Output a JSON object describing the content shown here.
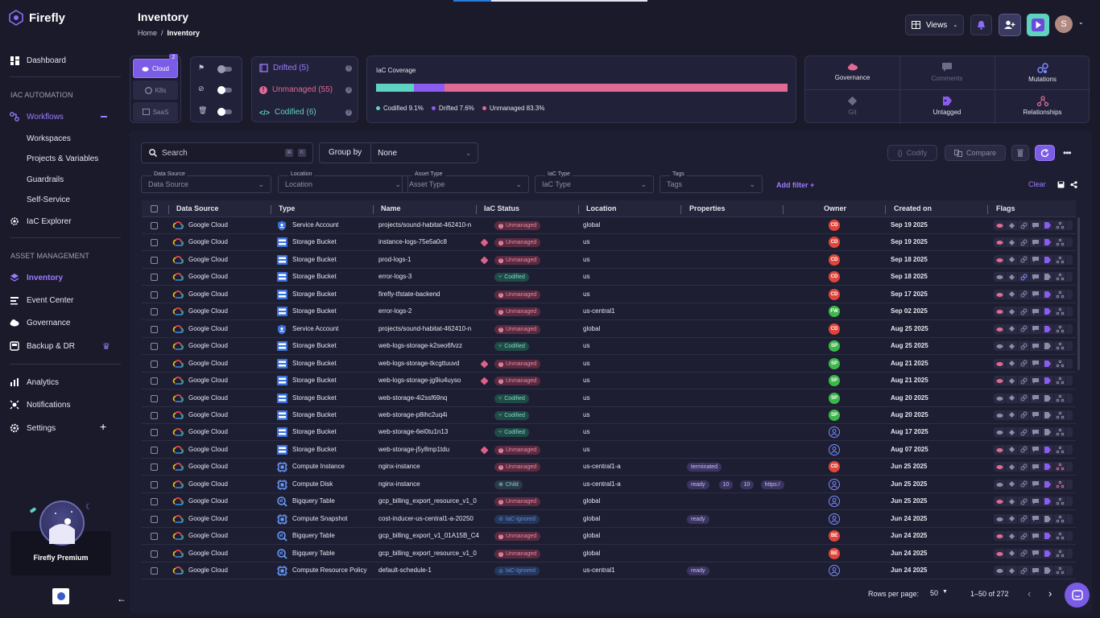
{
  "app": {
    "name": "Firefly"
  },
  "sidebar": {
    "dashboard": "Dashboard",
    "iac_section": "IAC AUTOMATION",
    "workflows": "Workflows",
    "sub": [
      "Workspaces",
      "Projects & Variables",
      "Guardrails",
      "Self-Service"
    ],
    "iac_explorer": "IaC Explorer",
    "asset_section": "ASSET MANAGEMENT",
    "inventory": "Inventory",
    "event_center": "Event Center",
    "governance": "Governance",
    "backup": "Backup & DR",
    "analytics": "Analytics",
    "notifications": "Notifications",
    "settings": "Settings",
    "premium": "Firefly Premium"
  },
  "header": {
    "title": "Inventory",
    "breadcrumb_home": "Home",
    "breadcrumb_sep": "/",
    "breadcrumb_current": "Inventory",
    "views_label": "Views",
    "avatar_initial": "S"
  },
  "datasource": {
    "cloud": "Cloud",
    "cloud_count": "2",
    "k8s": "K8s",
    "saas": "SaaS"
  },
  "status_cards": {
    "drifted": "Drifted (5)",
    "unmanaged": "Unmanaged (55)",
    "codified": "Codified (6)"
  },
  "coverage": {
    "title": "IaC Coverage",
    "codified_label": "Codified 9.1%",
    "drifted_label": "Drifted 7.6%",
    "unmanaged_label": "Unmanaged 83.3%",
    "codified_pct": 9.1,
    "drifted_pct": 7.6,
    "unmanaged_pct": 83.3,
    "colors": {
      "codified": "#5fd3c2",
      "drifted": "#8a5cf0",
      "unmanaged": "#e06a93"
    }
  },
  "actions": {
    "governance": "Governance",
    "comments": "Comments",
    "mutations": "Mutations",
    "git": "Git",
    "untagged": "Untagged",
    "relationships": "Relationships"
  },
  "toolbar": {
    "search_placeholder": "Search",
    "group_by": "Group by",
    "group_value": "None",
    "codify": "Codify",
    "compare": "Compare"
  },
  "filters": [
    {
      "label": "Data Source",
      "placeholder": "Data Source"
    },
    {
      "label": "Location",
      "placeholder": "Location"
    },
    {
      "label": "Asset Type",
      "placeholder": "Asset Type"
    },
    {
      "label": "IaC Type",
      "placeholder": "IaC Type"
    },
    {
      "label": "Tags",
      "placeholder": "Tags"
    }
  ],
  "filter_actions": {
    "add_filter": "Add filter +",
    "clear": "Clear"
  },
  "columns": [
    "Data Source",
    "Type",
    "Name",
    "IaC Status",
    "Location",
    "Properties",
    "Owner",
    "Created on",
    "Flags"
  ],
  "rows": [
    {
      "ds": "Google Cloud",
      "type": "Service Account",
      "ti": "sa",
      "name": "projects/sound-habitat-462410-n",
      "status": "Unmanaged",
      "tag": false,
      "loc": "global",
      "props": [],
      "owner": "CD",
      "oc": "#e0453a",
      "date": "Sep 19 2025"
    },
    {
      "ds": "Google Cloud",
      "type": "Storage Bucket",
      "ti": "sb",
      "name": "instance-logs-75e5a0c8",
      "status": "Unmanaged",
      "tag": true,
      "loc": "us",
      "props": [],
      "owner": "CD",
      "oc": "#e0453a",
      "date": "Sep 19 2025"
    },
    {
      "ds": "Google Cloud",
      "type": "Storage Bucket",
      "ti": "sb",
      "name": "prod-logs-1",
      "status": "Unmanaged",
      "tag": true,
      "loc": "us",
      "props": [],
      "owner": "CD",
      "oc": "#e0453a",
      "date": "Sep 18 2025"
    },
    {
      "ds": "Google Cloud",
      "type": "Storage Bucket",
      "ti": "sb",
      "name": "error-logs-3",
      "status": "Codified",
      "tag": false,
      "loc": "us",
      "props": [],
      "owner": "CD",
      "oc": "#e0453a",
      "date": "Sep 18 2025"
    },
    {
      "ds": "Google Cloud",
      "type": "Storage Bucket",
      "ti": "sb",
      "name": "firefly-tfstate-backend",
      "status": "Unmanaged",
      "tag": false,
      "loc": "us",
      "props": [],
      "owner": "CD",
      "oc": "#e0453a",
      "date": "Sep 17 2025"
    },
    {
      "ds": "Google Cloud",
      "type": "Storage Bucket",
      "ti": "sb",
      "name": "error-logs-2",
      "status": "Unmanaged",
      "tag": false,
      "loc": "us-central1",
      "props": [],
      "owner": "FW",
      "oc": "#3cb84a",
      "date": "Sep 02 2025"
    },
    {
      "ds": "Google Cloud",
      "type": "Service Account",
      "ti": "sa",
      "name": "projects/sound-habitat-462410-n",
      "status": "Unmanaged",
      "tag": false,
      "loc": "global",
      "props": [],
      "owner": "CD",
      "oc": "#e0453a",
      "date": "Aug 25 2025"
    },
    {
      "ds": "Google Cloud",
      "type": "Storage Bucket",
      "ti": "sb",
      "name": "web-logs-storage-k2seo6fvzz",
      "status": "Codified",
      "tag": false,
      "loc": "us",
      "props": [],
      "owner": "SP",
      "oc": "#3cb84a",
      "date": "Aug 25 2025"
    },
    {
      "ds": "Google Cloud",
      "type": "Storage Bucket",
      "ti": "sb",
      "name": "web-logs-storage-tkcgttuuvd",
      "status": "Unmanaged",
      "tag": true,
      "loc": "us",
      "props": [],
      "owner": "SP",
      "oc": "#3cb84a",
      "date": "Aug 21 2025"
    },
    {
      "ds": "Google Cloud",
      "type": "Storage Bucket",
      "ti": "sb",
      "name": "web-logs-storage-jg9iu4uyso",
      "status": "Unmanaged",
      "tag": true,
      "loc": "us",
      "props": [],
      "owner": "SP",
      "oc": "#3cb84a",
      "date": "Aug 21 2025"
    },
    {
      "ds": "Google Cloud",
      "type": "Storage Bucket",
      "ti": "sb",
      "name": "web-storage-4i2ssf69nq",
      "status": "Codified",
      "tag": false,
      "loc": "us",
      "props": [],
      "owner": "SP",
      "oc": "#3cb84a",
      "date": "Aug 20 2025"
    },
    {
      "ds": "Google Cloud",
      "type": "Storage Bucket",
      "ti": "sb",
      "name": "web-storage-p8ihc2uq4i",
      "status": "Codified",
      "tag": false,
      "loc": "us",
      "props": [],
      "owner": "SP",
      "oc": "#3cb84a",
      "date": "Aug 20 2025"
    },
    {
      "ds": "Google Cloud",
      "type": "Storage Bucket",
      "ti": "sb",
      "name": "web-storage-6ei0tu1n13",
      "status": "Codified",
      "tag": false,
      "loc": "us",
      "props": [],
      "owner": "",
      "oc": "",
      "date": "Aug 17 2025"
    },
    {
      "ds": "Google Cloud",
      "type": "Storage Bucket",
      "ti": "sb",
      "name": "web-storage-j5y8mp1tdu",
      "status": "Unmanaged",
      "tag": true,
      "loc": "us",
      "props": [],
      "owner": "",
      "oc": "",
      "date": "Aug 07 2025"
    },
    {
      "ds": "Google Cloud",
      "type": "Compute Instance",
      "ti": "ci",
      "name": "nginx-instance",
      "status": "Unmanaged",
      "tag": false,
      "loc": "us-central1-a",
      "props": [
        "terminated"
      ],
      "owner": "CD",
      "oc": "#e0453a",
      "date": "Jun 25 2025"
    },
    {
      "ds": "Google Cloud",
      "type": "Compute Disk",
      "ti": "ci",
      "name": "nginx-instance",
      "status": "Child",
      "tag": false,
      "loc": "us-central1-a",
      "props": [
        "ready",
        "10",
        "10",
        "https:/"
      ],
      "owner": "",
      "oc": "",
      "date": "Jun 25 2025"
    },
    {
      "ds": "Google Cloud",
      "type": "Bigquery Table",
      "ti": "bq",
      "name": "gcp_billing_export_resource_v1_0",
      "status": "Unmanaged",
      "tag": false,
      "loc": "global",
      "props": [],
      "owner": "",
      "oc": "",
      "date": "Jun 25 2025"
    },
    {
      "ds": "Google Cloud",
      "type": "Compute Snapshot",
      "ti": "ci",
      "name": "cost-inducer-us-central1-a-20250",
      "status": "IaC-Ignored",
      "tag": false,
      "loc": "global",
      "props": [
        "ready"
      ],
      "owner": "",
      "oc": "",
      "date": "Jun 24 2025"
    },
    {
      "ds": "Google Cloud",
      "type": "Bigquery Table",
      "ti": "bq",
      "name": "gcp_billing_export_v1_01A15B_C4",
      "status": "Unmanaged",
      "tag": false,
      "loc": "global",
      "props": [],
      "owner": "BE",
      "oc": "#e0453a",
      "date": "Jun 24 2025"
    },
    {
      "ds": "Google Cloud",
      "type": "Bigquery Table",
      "ti": "bq",
      "name": "gcp_billing_export_resource_v1_0",
      "status": "Unmanaged",
      "tag": false,
      "loc": "global",
      "props": [],
      "owner": "BE",
      "oc": "#e0453a",
      "date": "Jun 24 2025"
    },
    {
      "ds": "Google Cloud",
      "type": "Compute Resource Policy",
      "ti": "ci",
      "name": "default-schedule-1",
      "status": "IaC-Ignored",
      "tag": false,
      "loc": "us-central1",
      "props": [
        "ready"
      ],
      "owner": "",
      "oc": "",
      "date": "Jun 24 2025"
    }
  ],
  "pagination": {
    "rows_per_page": "Rows per page:",
    "rows_value": "50",
    "range": "1–50 of 272"
  }
}
